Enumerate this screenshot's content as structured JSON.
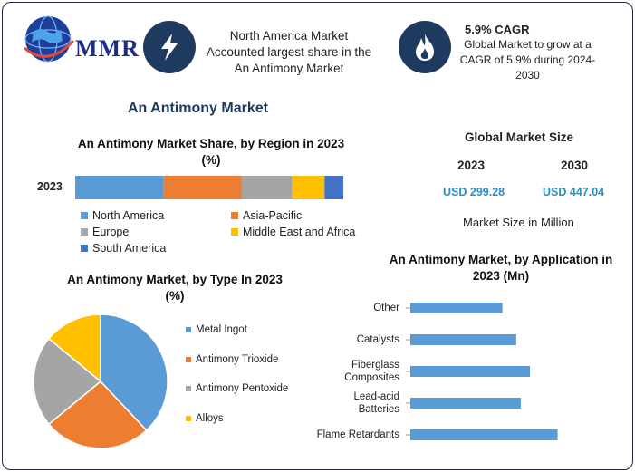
{
  "header": {
    "logo": "MMR",
    "box1": [
      "North America Market",
      "Accounted largest share in the",
      "An Antimony Market"
    ],
    "cagr_title": "5.9% CAGR",
    "cagr_text": [
      "Global Market to grow at a",
      "CAGR of 5.9% during 2024-",
      "2030"
    ]
  },
  "main_title": "An Antimony Market",
  "colors": {
    "blue": "#5b9bd5",
    "orange": "#ed7d31",
    "gray": "#a5a5a5",
    "yellow": "#ffc000",
    "darkblue": "#4472c4",
    "navy": "#1e3a5f"
  },
  "global_market": {
    "title": "Global Market Size",
    "years": [
      "2023",
      "2030"
    ],
    "values": [
      "USD 299.28",
      "USD 447.04"
    ],
    "caption": "Market Size in Million"
  },
  "chart_data": [
    {
      "type": "bar",
      "orientation": "horizontal-stacked",
      "title": [
        "An Antimony Market Share, by Region in 2023",
        "(%)"
      ],
      "categories": [
        "2023"
      ],
      "series": [
        {
          "name": "North America",
          "values": [
            33
          ]
        },
        {
          "name": "Asia-Pacific",
          "values": [
            29
          ]
        },
        {
          "name": "Europe",
          "values": [
            19
          ]
        },
        {
          "name": "Middle East and Africa",
          "values": [
            12
          ]
        },
        {
          "name": "South America",
          "values": [
            7
          ]
        }
      ],
      "legend": "bottom"
    },
    {
      "type": "pie",
      "title": [
        "An Antimony Market, by Type In 2023",
        "(%)"
      ],
      "labels": [
        "Metal Ingot",
        "Antimony Trioxide",
        "Antimony Pentoxide",
        "Alloys"
      ],
      "values": [
        38,
        26,
        22,
        14
      ],
      "legend": "right"
    },
    {
      "type": "bar",
      "orientation": "horizontal",
      "title": [
        "An Antimony Market, by Application in",
        "2023 (Mn)"
      ],
      "categories": [
        "Other",
        "Catalysts",
        "Fiberglass Composites",
        "Lead-acid Batteries",
        "Flame Retardants"
      ],
      "category_lines": [
        [
          "Other"
        ],
        [
          "Catalysts"
        ],
        [
          "Fiberglass",
          "Composites"
        ],
        [
          "Lead-acid",
          "Batteries"
        ],
        [
          "Flame Retardants"
        ]
      ],
      "values": [
        40,
        46,
        52,
        48,
        64
      ],
      "xlim": [
        0,
        100
      ]
    }
  ]
}
